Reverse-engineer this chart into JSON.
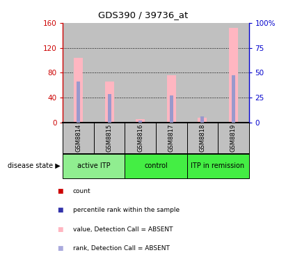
{
  "title": "GDS390 / 39736_at",
  "samples": [
    "GSM8814",
    "GSM8815",
    "GSM8816",
    "GSM8817",
    "GSM8818",
    "GSM8819"
  ],
  "pink_bar_heights": [
    104,
    66,
    5,
    76,
    8,
    152
  ],
  "blue_bar_heights": [
    66,
    46,
    3,
    43,
    10,
    76
  ],
  "ylim_left": [
    0,
    160
  ],
  "ylim_right": [
    0,
    100
  ],
  "yticks_left": [
    0,
    40,
    80,
    120,
    160
  ],
  "ytick_labels_left": [
    "0",
    "40",
    "80",
    "120",
    "160"
  ],
  "yticks_right": [
    0,
    25,
    50,
    75,
    100
  ],
  "ytick_labels_right": [
    "0",
    "25",
    "50",
    "75",
    "100%"
  ],
  "grid_lines_at": [
    40,
    80,
    120
  ],
  "pink_color": "#FFB6C1",
  "blue_color": "#9999CC",
  "red_color": "#CC0000",
  "blue_legend_color": "#3333AA",
  "left_axis_color": "#CC0000",
  "right_axis_color": "#0000CC",
  "group_colors": [
    "#90EE90",
    "#44EE44",
    "#44EE44"
  ],
  "group_labels": [
    "active ITP",
    "control",
    "ITP in remission"
  ],
  "group_xranges": [
    [
      0,
      2
    ],
    [
      2,
      4
    ],
    [
      4,
      6
    ]
  ],
  "bar_bg_color": "#C0C0C0",
  "legend_colors": [
    "#CC0000",
    "#3333AA",
    "#FFB6C1",
    "#AAAADD"
  ],
  "legend_labels": [
    "count",
    "percentile rank within the sample",
    "value, Detection Call = ABSENT",
    "rank, Detection Call = ABSENT"
  ]
}
